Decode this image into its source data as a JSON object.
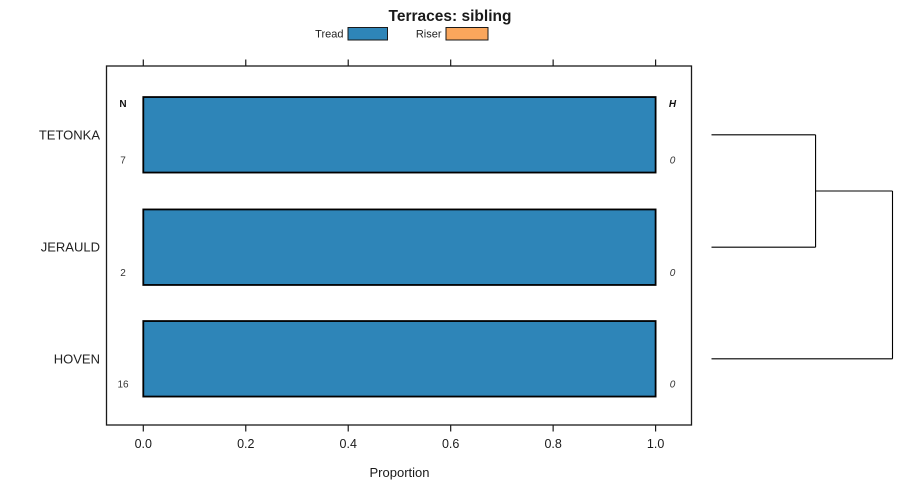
{
  "title": "Terraces: sibling",
  "legend": {
    "items": [
      {
        "label": "Tread",
        "color": "#2E85B8"
      },
      {
        "label": "Riser",
        "color": "#FAA65C"
      }
    ]
  },
  "chart_data": {
    "type": "bar",
    "orientation": "horizontal",
    "title": "Terraces: sibling",
    "categories": [
      "TETONKA",
      "JERAULD",
      "HOVEN"
    ],
    "series": [
      {
        "name": "Tread",
        "color": "#2E85B8",
        "values": [
          1.0,
          1.0,
          1.0
        ]
      },
      {
        "name": "Riser",
        "color": "#FAA65C",
        "values": [
          0.0,
          0.0,
          0.0
        ]
      }
    ],
    "left_column": {
      "header": "N",
      "values": [
        "7",
        "2",
        "16"
      ]
    },
    "right_column": {
      "header": "H",
      "values": [
        "0",
        "0",
        "0"
      ]
    },
    "xlabel": "Proportion",
    "xlim": [
      0.0,
      1.0
    ],
    "x_ticks": [
      0.0,
      0.2,
      0.4,
      0.6,
      0.8,
      1.0
    ],
    "x_tick_labels": [
      "0.0",
      "0.2",
      "0.4",
      "0.6",
      "0.8",
      "1.0"
    ],
    "grid": false,
    "legend_position": "top-center",
    "dendrogram": {
      "side": "right",
      "leaf_order": [
        "TETONKA",
        "JERAULD",
        "HOVEN"
      ],
      "merges": [
        {
          "a": {
            "leaf": 0
          },
          "b": {
            "leaf": 1
          },
          "height": 0.575
        },
        {
          "a": {
            "merge": 0
          },
          "b": {
            "leaf": 2
          },
          "height": 1.0
        }
      ]
    }
  }
}
